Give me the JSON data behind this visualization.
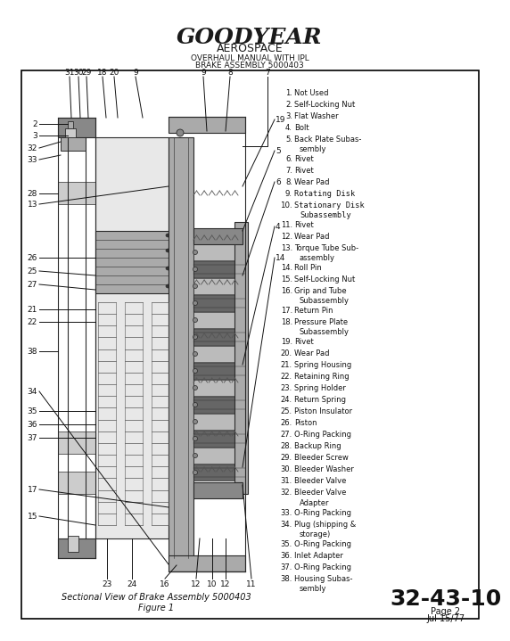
{
  "bg_color": "#ffffff",
  "border_color": "#000000",
  "logo_text": "GOODYEAR",
  "logo_sub": "AEROSPACE",
  "header_line1": "OVERHAUL MANUAL WITH IPL",
  "header_line2": "BRAKE ASSEMBLY 5000403",
  "parts_raw": [
    [
      1,
      "Not Used",
      false
    ],
    [
      2,
      "Self-Locking Nut",
      false
    ],
    [
      3,
      "Flat Washer",
      false
    ],
    [
      4,
      "Bolt",
      false
    ],
    [
      5,
      "Back Plate Subas-\nsembly",
      false
    ],
    [
      6,
      "Rivet",
      false
    ],
    [
      7,
      "Rivet",
      false
    ],
    [
      8,
      "Wear Pad",
      false
    ],
    [
      9,
      "Rotating Disk",
      true
    ],
    [
      10,
      "Stationary Disk\nSubassembly",
      true
    ],
    [
      11,
      "Rivet",
      false
    ],
    [
      12,
      "Wear Pad",
      false
    ],
    [
      13,
      "Torque Tube Sub-\nassembly",
      false
    ],
    [
      14,
      "Roll Pin",
      false
    ],
    [
      15,
      "Self-Locking Nut",
      false
    ],
    [
      16,
      "Grip and Tube\nSubassembly",
      false
    ],
    [
      17,
      "Return Pin",
      false
    ],
    [
      18,
      "Pressure Plate\nSubassembly",
      false
    ],
    [
      19,
      "Rivet",
      false
    ],
    [
      20,
      "Wear Pad",
      false
    ],
    [
      21,
      "Spring Housing",
      false
    ],
    [
      22,
      "Retaining Ring",
      false
    ],
    [
      23,
      "Spring Holder",
      false
    ],
    [
      24,
      "Return Spring",
      false
    ],
    [
      25,
      "Piston Insulator",
      false
    ],
    [
      26,
      "Piston",
      false
    ],
    [
      27,
      "O-Ring Packing",
      false
    ],
    [
      28,
      "Backup Ring",
      false
    ],
    [
      29,
      "Bleeder Screw",
      false
    ],
    [
      30,
      "Bleeder Washer",
      false
    ],
    [
      31,
      "Bleeder Valve",
      false
    ],
    [
      32,
      "Bleeder Valve\nAdapter",
      false
    ],
    [
      33,
      "O-Ring Packing",
      false
    ],
    [
      34,
      "Plug (shipping &\nstorage)",
      false
    ],
    [
      35,
      "O-Ring Packing",
      false
    ],
    [
      36,
      "Inlet Adapter",
      false
    ],
    [
      37,
      "O-Ring Packing",
      false
    ],
    [
      38,
      "Housing Subas-\nsembly",
      false
    ]
  ],
  "caption_line1": "Sectional View of Brake Assembly 5000403",
  "caption_line2": "Figure 1",
  "page_ref": "32-43-10",
  "page_num": "Page 2",
  "page_date": "Jul 15/77"
}
